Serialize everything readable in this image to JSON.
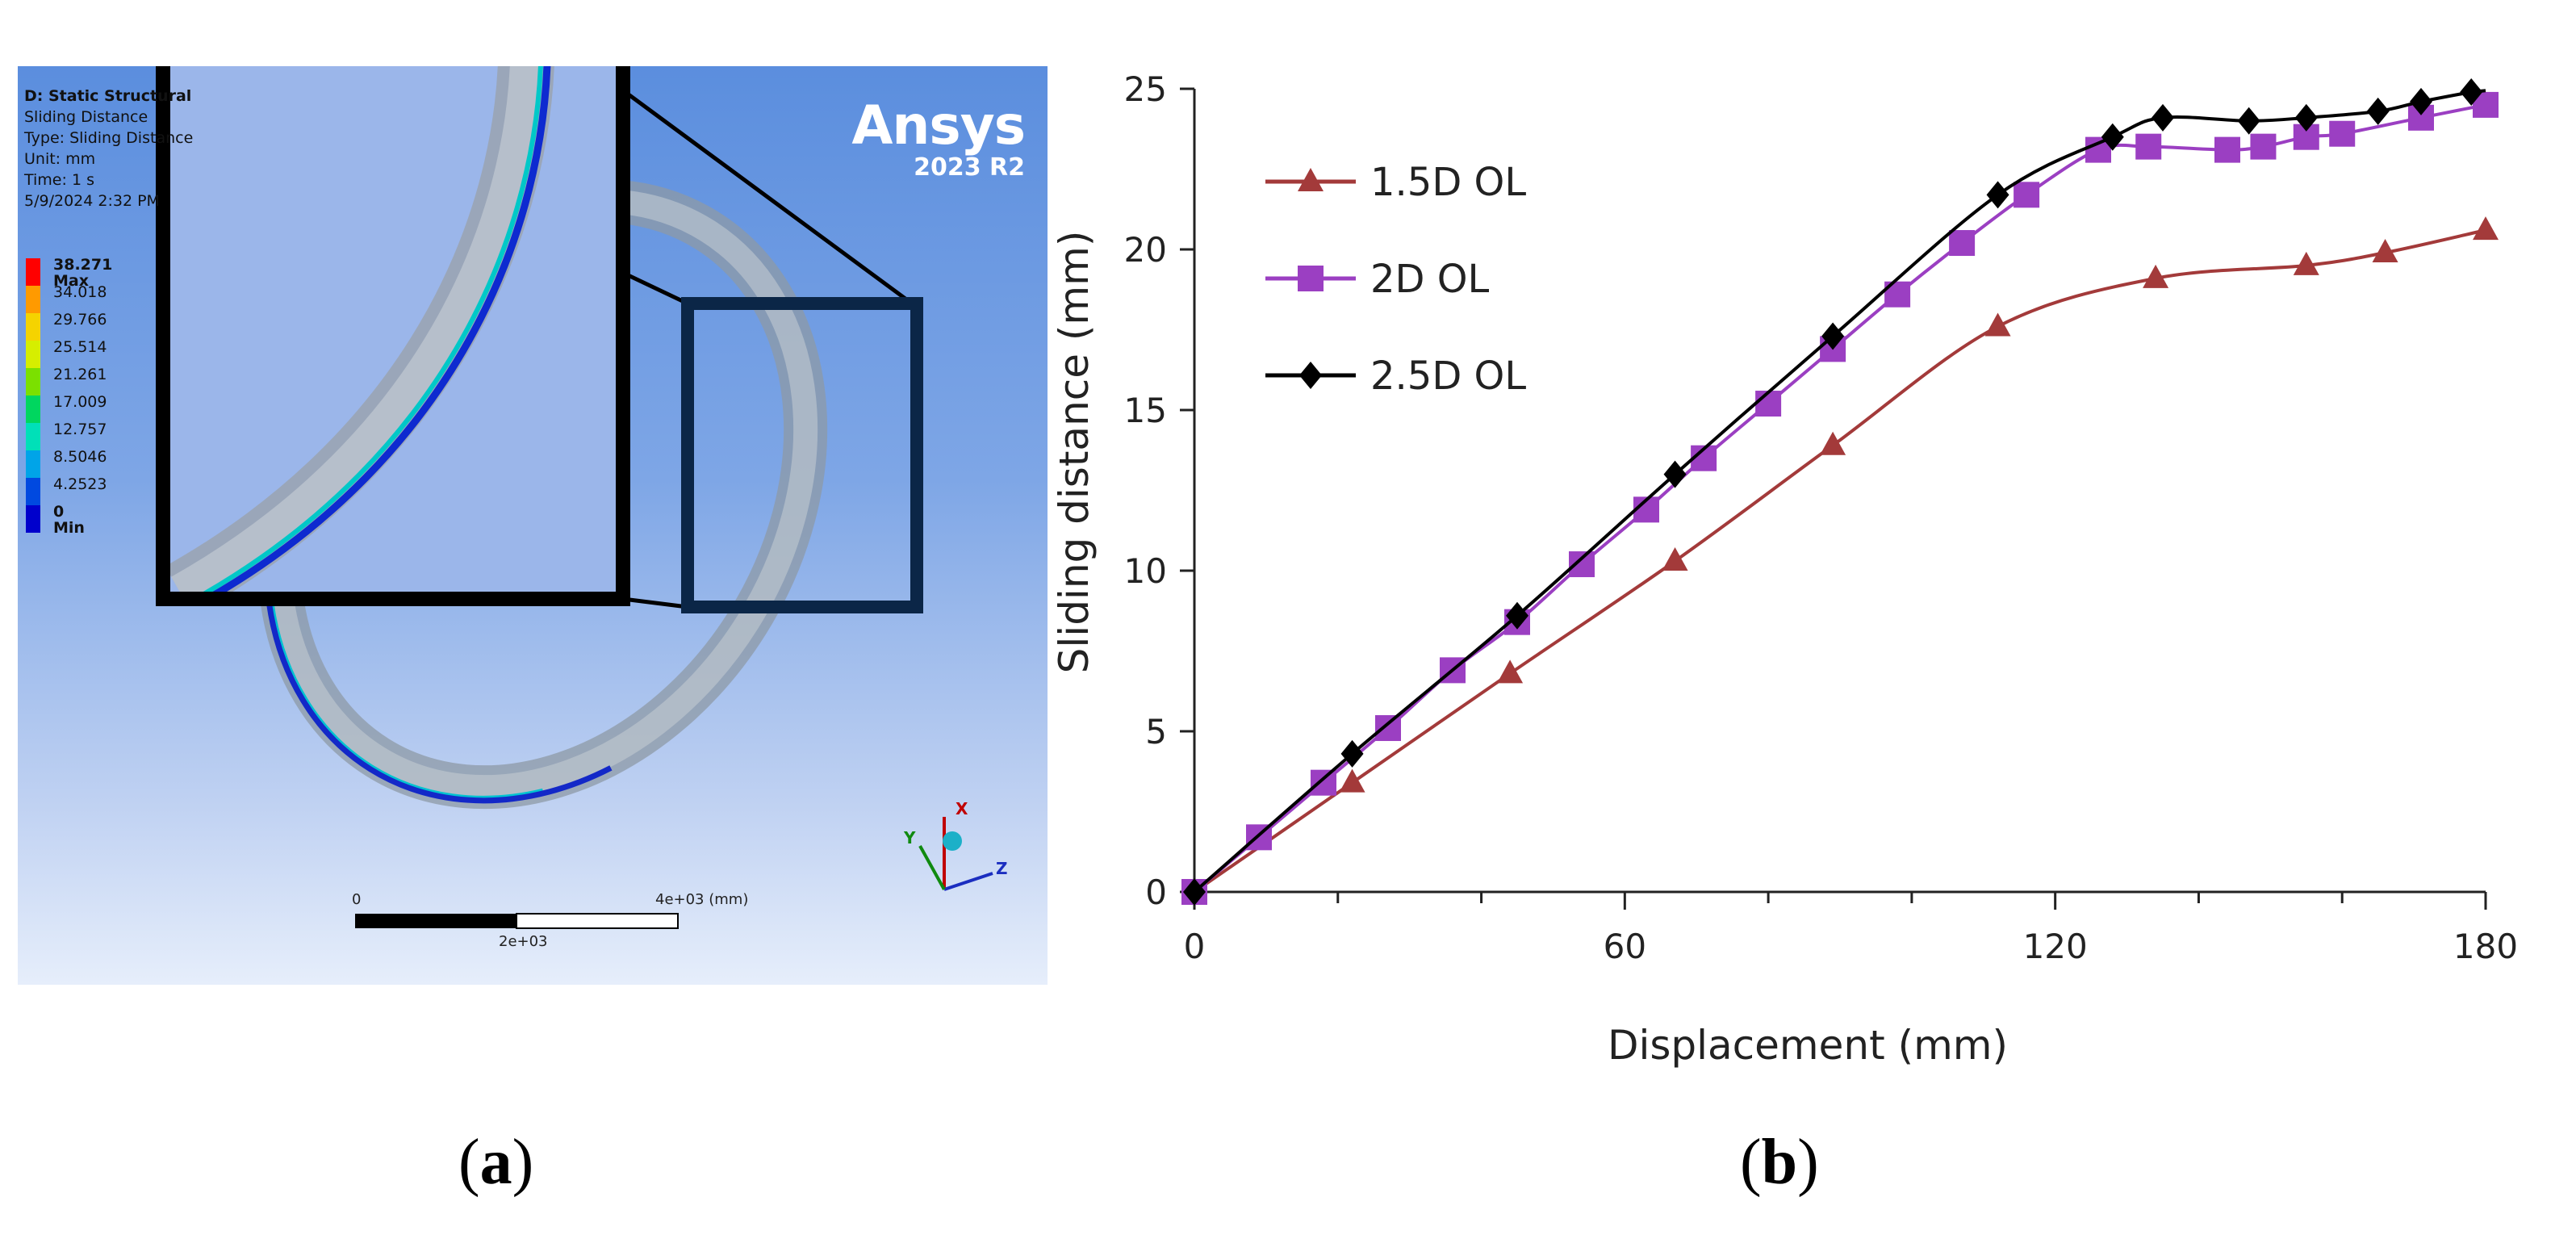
{
  "panel_a": {
    "label": "a",
    "info": {
      "title": "D: Static Structural",
      "result": "Sliding Distance",
      "type": "Type: Sliding Distance",
      "unit": "Unit: mm",
      "time": "Time: 1 s",
      "date": "5/9/2024 2:32 PM"
    },
    "legend": [
      {
        "label": "38.271 Max",
        "color": "#ff0000"
      },
      {
        "label": "34.018",
        "color": "#ff9a00"
      },
      {
        "label": "29.766",
        "color": "#f5d300"
      },
      {
        "label": "25.514",
        "color": "#d6ee00"
      },
      {
        "label": "21.261",
        "color": "#7be000"
      },
      {
        "label": "17.009",
        "color": "#00d65f"
      },
      {
        "label": "12.757",
        "color": "#00e0b8"
      },
      {
        "label": "8.5046",
        "color": "#00a4e8"
      },
      {
        "label": "4.2523",
        "color": "#0049e0"
      },
      {
        "label": "0 Min",
        "color": "#0000cc"
      }
    ],
    "logo": {
      "name": "Ansys",
      "version": "2023 R2"
    },
    "scale": {
      "start": "0",
      "end": "4e+03 (mm)",
      "mid": "2e+03"
    },
    "triad": {
      "x": "X",
      "y": "Y",
      "z": "Z"
    }
  },
  "panel_b": {
    "label": "b",
    "chart_data": {
      "type": "line",
      "title": "",
      "xlabel": "Displacement (mm)",
      "ylabel": "Sliding distance (mm)",
      "xlim": [
        0,
        180
      ],
      "ylim": [
        0,
        25
      ],
      "xticks": [
        0,
        60,
        120,
        180
      ],
      "yticks": [
        0,
        5,
        10,
        15,
        20,
        25
      ],
      "grid": false,
      "legend_position": "top-left",
      "series": [
        {
          "name": "1.5D OL",
          "color": "#a33a3a",
          "marker": "triangle",
          "x": [
            0,
            22,
            44,
            67,
            89,
            112,
            134,
            155,
            166,
            180
          ],
          "y": [
            0,
            3.4,
            6.8,
            10.3,
            13.9,
            17.6,
            19.1,
            19.5,
            19.9,
            20.6
          ]
        },
        {
          "name": "2D OL",
          "color": "#9b3fc2",
          "marker": "square",
          "x": [
            0,
            9,
            18,
            27,
            36,
            45,
            54,
            63,
            71,
            80,
            89,
            98,
            107,
            116,
            126,
            133,
            144,
            149,
            155,
            160,
            171,
            180
          ],
          "y": [
            0,
            1.7,
            3.4,
            5.1,
            6.9,
            8.4,
            10.2,
            11.9,
            13.5,
            15.2,
            16.9,
            18.6,
            20.2,
            21.7,
            23.1,
            23.2,
            23.1,
            23.2,
            23.5,
            23.6,
            24.1,
            24.5
          ]
        },
        {
          "name": "2.5D OL",
          "color": "#000000",
          "marker": "diamond",
          "x": [
            0,
            22,
            45,
            67,
            89,
            112,
            128,
            135,
            147,
            155,
            165,
            171,
            178
          ],
          "y": [
            0,
            4.3,
            8.6,
            13.0,
            17.3,
            21.7,
            23.5,
            24.1,
            24.0,
            24.1,
            24.3,
            24.6,
            24.9
          ]
        }
      ]
    }
  }
}
